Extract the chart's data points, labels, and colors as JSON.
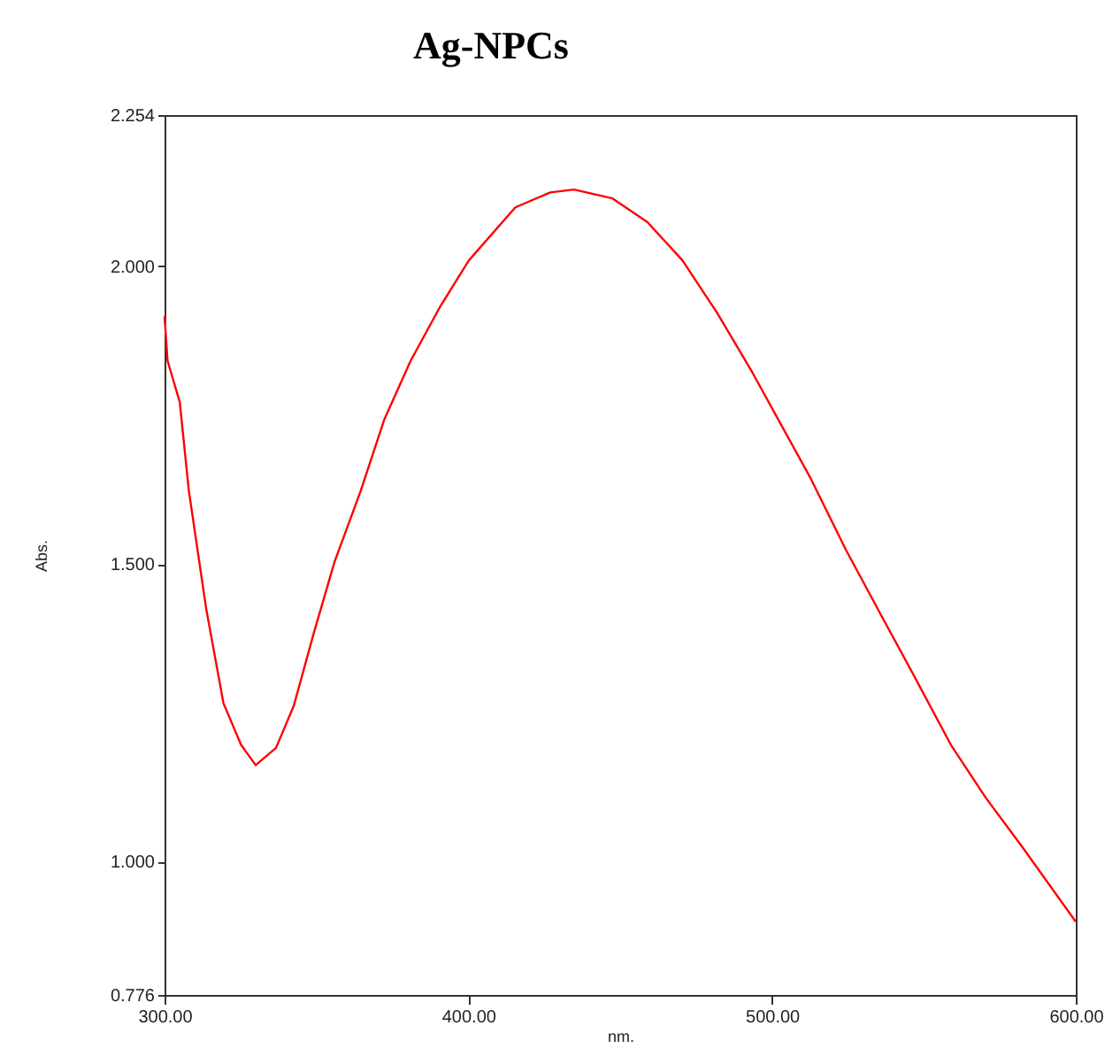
{
  "chart_data": {
    "type": "line",
    "title": "Ag-NPCs",
    "xlabel": "nm.",
    "ylabel": "Abs.",
    "x": [
      300,
      301,
      305,
      308,
      313.7,
      319.4,
      325.2,
      330,
      336.7,
      342.5,
      349.2,
      356,
      364.6,
      372.3,
      381,
      390.6,
      400.2,
      415.5,
      427,
      434.8,
      447.5,
      459,
      470.5,
      482,
      493.6,
      503.2,
      512.8,
      524.3,
      535.8,
      547.4,
      558.9,
      570.4,
      581.9,
      600
    ],
    "series": [
      {
        "color": "#ff0000",
        "values": [
          1.916,
          1.841,
          1.772,
          1.623,
          1.425,
          1.266,
          1.196,
          1.162,
          1.191,
          1.261,
          1.385,
          1.504,
          1.623,
          1.742,
          1.841,
          1.931,
          2.01,
          2.099,
          2.124,
          2.129,
          2.114,
          2.074,
          2.01,
          1.921,
          1.821,
          1.732,
          1.643,
          1.524,
          1.415,
          1.306,
          1.196,
          1.107,
          1.028,
          0.899
        ]
      }
    ],
    "xlim": [
      300,
      600
    ],
    "xticks": [
      {
        "value": 300,
        "label": "300.00"
      },
      {
        "value": 400,
        "label": "400.00"
      },
      {
        "value": 500,
        "label": "500.00"
      },
      {
        "value": 600,
        "label": "600.00"
      }
    ],
    "ylim": [
      0.776,
      2.254
    ],
    "yticks": [
      {
        "value": 0.776,
        "label": "0.776"
      },
      {
        "value": 1,
        "label": "1.000"
      },
      {
        "value": 1.5,
        "label": "1.500"
      },
      {
        "value": 2,
        "label": "2.000"
      },
      {
        "value": 2.254,
        "label": "2.254"
      }
    ],
    "grid": false,
    "legend": false,
    "marker": "none",
    "line_style": "solid"
  }
}
